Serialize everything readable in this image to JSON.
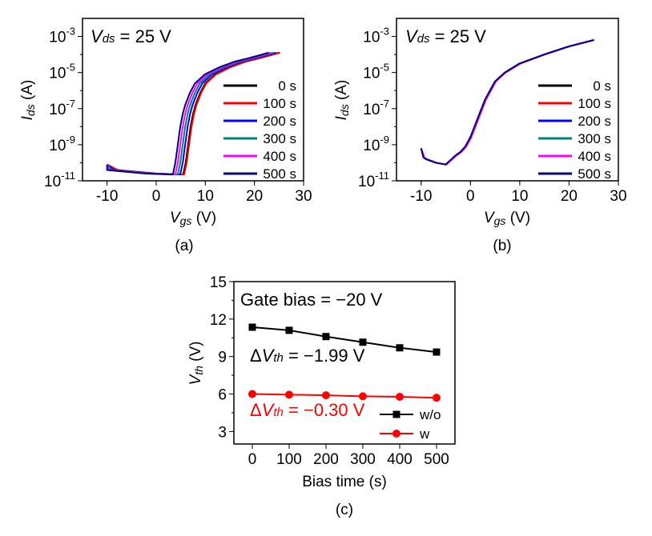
{
  "chart_data": [
    {
      "id": "a",
      "type": "line",
      "caption": "(a)",
      "annotation": {
        "var": "V",
        "sub": "ds",
        "text": " = 25 V"
      },
      "xlabel": {
        "var": "V",
        "sub": "gs",
        "unit": " (V)"
      },
      "ylabel": {
        "var": "I",
        "sub": "ds",
        "unit": " (A)"
      },
      "xlim": [
        -15,
        30
      ],
      "ylim_log10": [
        -11,
        -2
      ],
      "yscale": "log",
      "xticks": [
        -10,
        0,
        10,
        20,
        30
      ],
      "xtick_labels": [
        "-10",
        "0",
        "10",
        "20",
        "30"
      ],
      "yticks_log10": [
        -11,
        -9,
        -7,
        -5,
        -3
      ],
      "ytick_labels": [
        {
          "base": "10",
          "exp": "-11"
        },
        {
          "base": "10",
          "exp": "-9"
        },
        {
          "base": "10",
          "exp": "-7"
        },
        {
          "base": "10",
          "exp": "-5"
        },
        {
          "base": "10",
          "exp": "-3"
        }
      ],
      "legend_position": "right",
      "series": [
        {
          "name": "0 s",
          "color": "#000000",
          "vth_shift": 0.0
        },
        {
          "name": "100 s",
          "color": "#ff0000",
          "vth_shift": 0.2
        },
        {
          "name": "200 s",
          "color": "#0000ff",
          "vth_shift": -0.6
        },
        {
          "name": "300 s",
          "color": "#008080",
          "vth_shift": -1.1
        },
        {
          "name": "400 s",
          "color": "#ff00ff",
          "vth_shift": -1.6
        },
        {
          "name": "500 s",
          "color": "#000080",
          "vth_shift": -2.1
        }
      ],
      "x": [
        -10,
        -8,
        -6,
        -4,
        -2,
        0,
        2,
        4,
        5.5,
        6,
        6.5,
        7,
        7.5,
        8,
        9,
        10,
        12,
        15,
        18,
        21,
        25
      ],
      "base_log10_ids": [
        -10.1,
        -10.4,
        -10.45,
        -10.5,
        -10.55,
        -10.6,
        -10.62,
        -10.64,
        -10.65,
        -10.0,
        -9.0,
        -8.0,
        -7.3,
        -6.8,
        -6.1,
        -5.6,
        -5.1,
        -4.7,
        -4.4,
        -4.2,
        -3.9
      ]
    },
    {
      "id": "b",
      "type": "line",
      "caption": "(b)",
      "annotation": {
        "var": "V",
        "sub": "ds",
        "text": " = 25 V"
      },
      "xlabel": {
        "var": "V",
        "sub": "gs",
        "unit": " (V)"
      },
      "ylabel": {
        "var": "I",
        "sub": "ds",
        "unit": " (A)"
      },
      "xlim": [
        -15,
        30
      ],
      "ylim_log10": [
        -11,
        -2
      ],
      "yscale": "log",
      "xticks": [
        -10,
        0,
        10,
        20,
        30
      ],
      "xtick_labels": [
        "-10",
        "0",
        "10",
        "20",
        "30"
      ],
      "yticks_log10": [
        -11,
        -9,
        -7,
        -5,
        -3
      ],
      "ytick_labels": [
        {
          "base": "10",
          "exp": "-11"
        },
        {
          "base": "10",
          "exp": "-9"
        },
        {
          "base": "10",
          "exp": "-7"
        },
        {
          "base": "10",
          "exp": "-5"
        },
        {
          "base": "10",
          "exp": "-3"
        }
      ],
      "legend_position": "right",
      "series": [
        {
          "name": "0 s",
          "color": "#000000",
          "vth_shift": 0.0
        },
        {
          "name": "100 s",
          "color": "#ff0000",
          "vth_shift": 0.15
        },
        {
          "name": "200 s",
          "color": "#0000ff",
          "vth_shift": 0.05
        },
        {
          "name": "300 s",
          "color": "#008080",
          "vth_shift": 0.0
        },
        {
          "name": "400 s",
          "color": "#ff00ff",
          "vth_shift": 0.1
        },
        {
          "name": "500 s",
          "color": "#000080",
          "vth_shift": -0.05
        }
      ],
      "x": [
        -10,
        -9.5,
        -9,
        -8,
        -7,
        -6,
        -5,
        -4,
        -3,
        -2,
        -1,
        0,
        1,
        2,
        3,
        4,
        5,
        7,
        10,
        15,
        20,
        25
      ],
      "base_log10_ids": [
        -9.2,
        -9.7,
        -9.8,
        -9.9,
        -10.0,
        -10.05,
        -10.1,
        -9.85,
        -9.6,
        -9.4,
        -9.1,
        -8.6,
        -7.9,
        -7.2,
        -6.5,
        -6.0,
        -5.5,
        -5.0,
        -4.5,
        -4.0,
        -3.55,
        -3.2
      ]
    },
    {
      "id": "c",
      "type": "line",
      "caption": "(c)",
      "annotation": "Gate bias = −20 V",
      "xlabel": "Bias time (s)",
      "ylabel": {
        "var": "V",
        "sub": "th",
        "unit": " (V)"
      },
      "xlim": [
        -50,
        550
      ],
      "ylim": [
        2,
        15
      ],
      "xticks": [
        0,
        100,
        200,
        300,
        400,
        500
      ],
      "xtick_labels": [
        "0",
        "100",
        "200",
        "300",
        "400",
        "500"
      ],
      "yticks": [
        3,
        6,
        9,
        12,
        15
      ],
      "ytick_labels": [
        "3",
        "6",
        "9",
        "12",
        "15"
      ],
      "legend_position": "bottom-right",
      "x": [
        0,
        100,
        200,
        300,
        400,
        500
      ],
      "series": [
        {
          "name": "w/o",
          "color": "#000000",
          "marker": "square",
          "values": [
            11.35,
            11.1,
            10.6,
            10.15,
            9.7,
            9.36
          ],
          "delta_label": {
            "prefix": "Δ",
            "var": "V",
            "sub": "th",
            "text": " = −1.99 V"
          }
        },
        {
          "name": "w",
          "color": "#ff0000",
          "marker": "circle",
          "values": [
            6.0,
            5.95,
            5.9,
            5.82,
            5.78,
            5.7
          ],
          "delta_label": {
            "prefix": "Δ",
            "var": "V",
            "sub": "th",
            "text": " = −0.30 V"
          }
        }
      ]
    }
  ]
}
